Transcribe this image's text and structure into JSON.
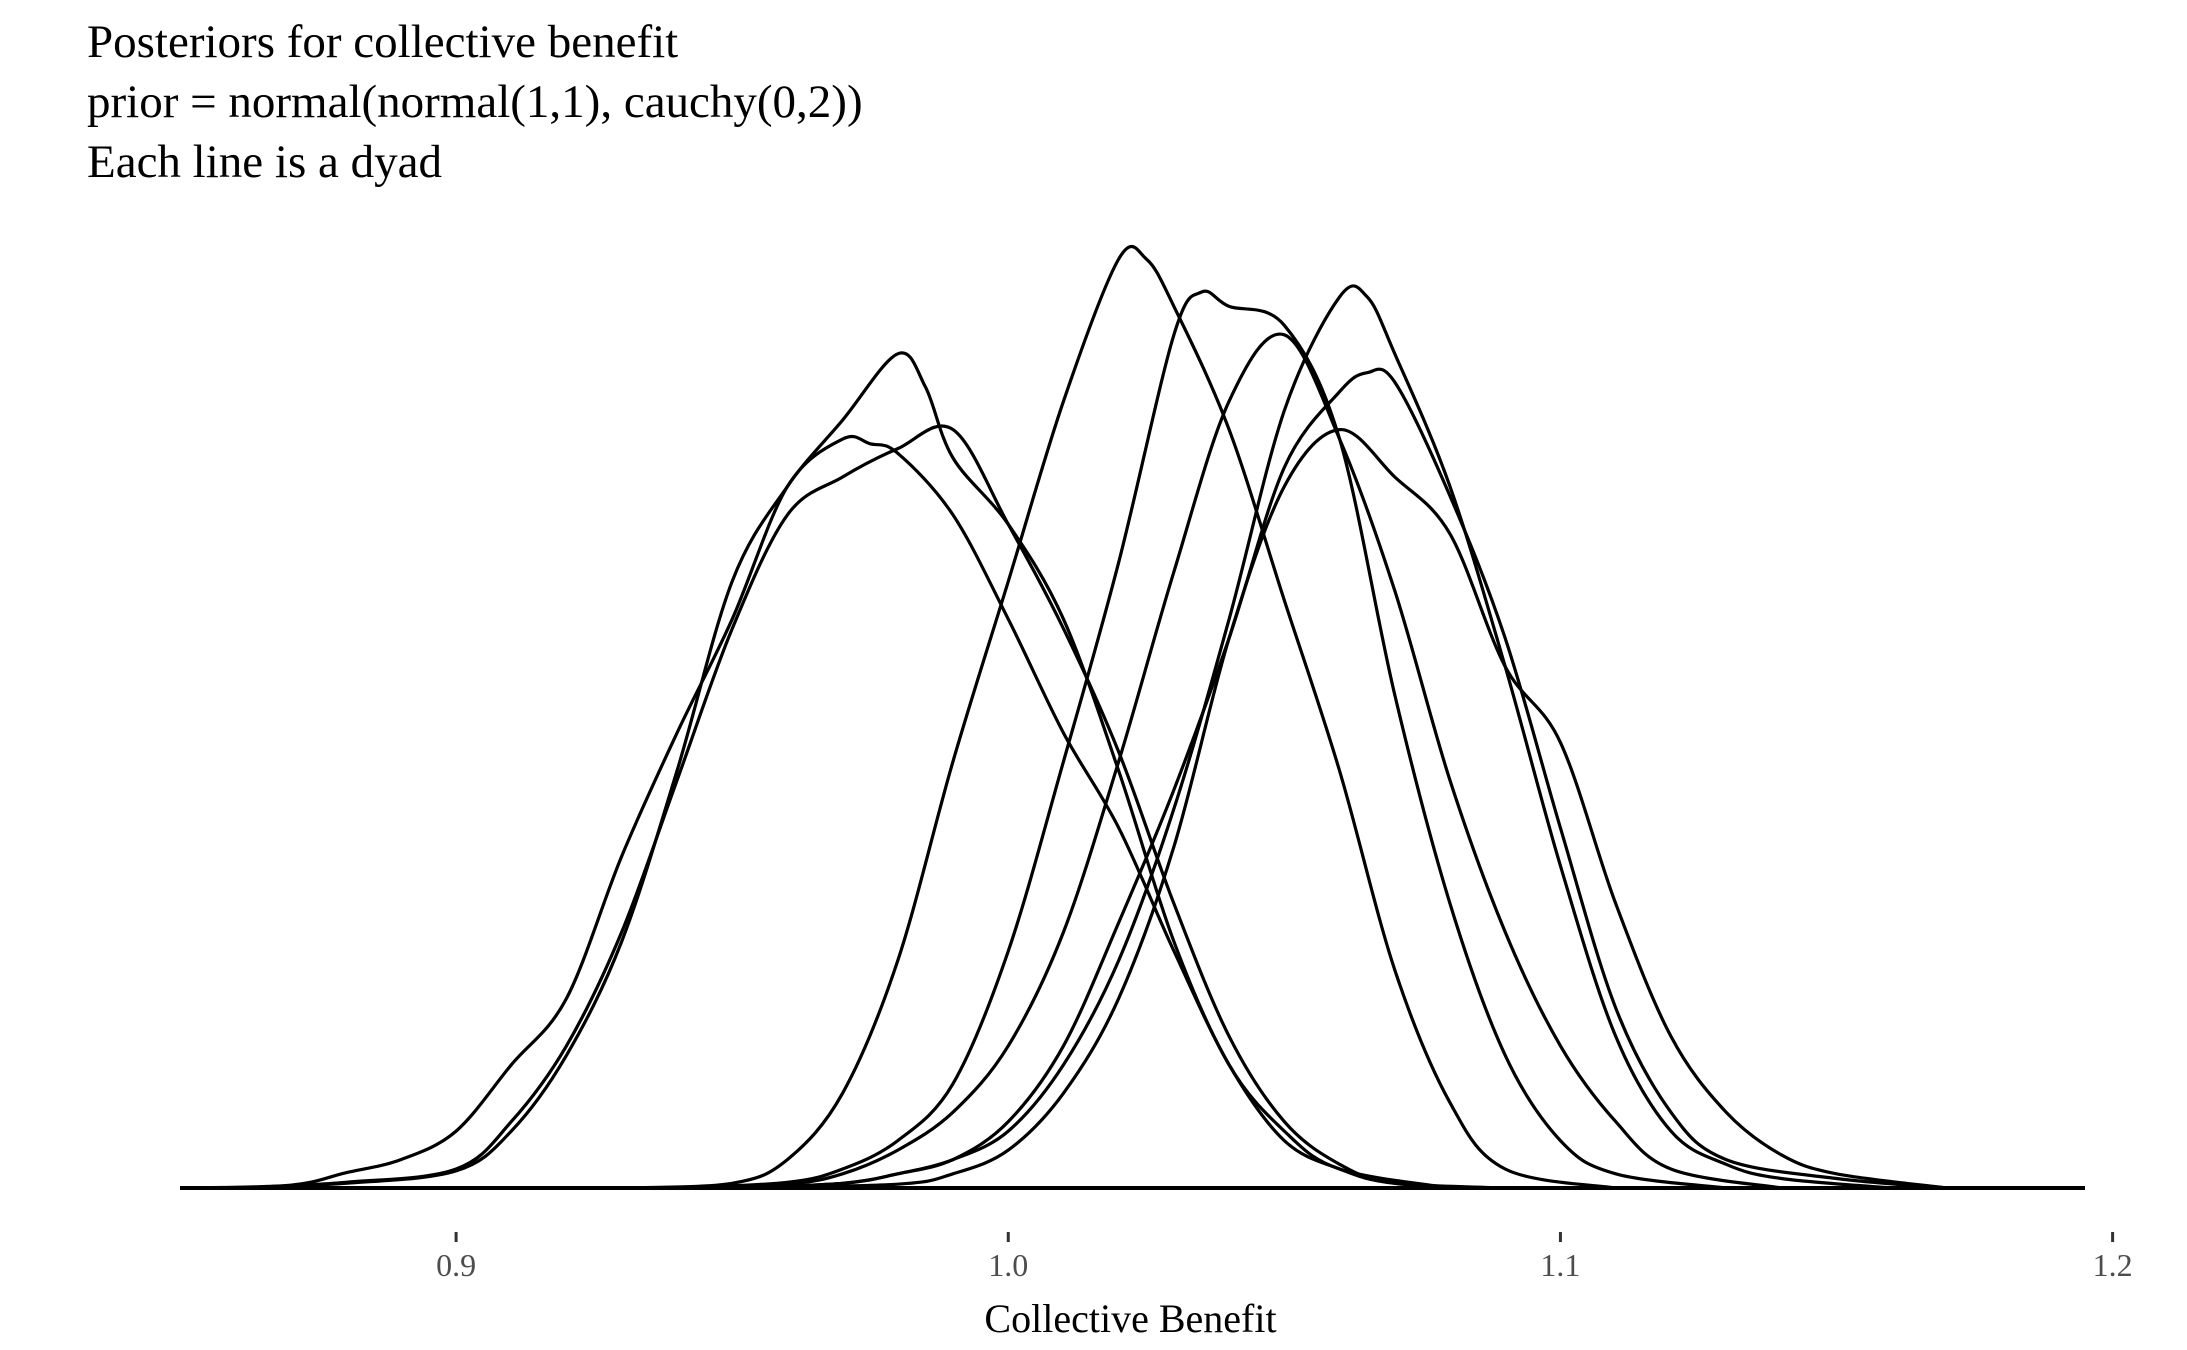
{
  "chart_data": {
    "type": "line",
    "title_lines": [
      "Posteriors for collective benefit",
      "prior = normal(normal(1,1), cauchy(0,2))",
      "Each line is a dyad"
    ],
    "xlabel": "Collective Benefit",
    "ylabel": "",
    "xlim": [
      0.85,
      1.195
    ],
    "ylim": [
      0,
      1.0
    ],
    "x_ticks": [
      0.9,
      1.0,
      1.1,
      1.2
    ],
    "x_tick_labels": [
      "0.9",
      "1.0",
      "1.1",
      "1.2"
    ],
    "grid": false,
    "legend": "none",
    "line_color": "#000000",
    "series": [
      {
        "points": [
          [
            0.85,
            0
          ],
          [
            0.87,
            0.003
          ],
          [
            0.88,
            0.016
          ],
          [
            0.89,
            0.03
          ],
          [
            0.9,
            0.06
          ],
          [
            0.91,
            0.13
          ],
          [
            0.92,
            0.2
          ],
          [
            0.93,
            0.35
          ],
          [
            0.94,
            0.48
          ],
          [
            0.95,
            0.6
          ],
          [
            0.96,
            0.74
          ],
          [
            0.97,
            0.79
          ],
          [
            0.975,
            0.785
          ],
          [
            0.98,
            0.775
          ],
          [
            0.99,
            0.71
          ],
          [
            1.0,
            0.6
          ],
          [
            1.01,
            0.48
          ],
          [
            1.02,
            0.38
          ],
          [
            1.03,
            0.25
          ],
          [
            1.04,
            0.13
          ],
          [
            1.05,
            0.05
          ],
          [
            1.06,
            0.02
          ],
          [
            1.07,
            0.005
          ],
          [
            1.09,
            0
          ]
        ]
      },
      {
        "points": [
          [
            0.86,
            0
          ],
          [
            0.88,
            0.006
          ],
          [
            0.9,
            0.02
          ],
          [
            0.91,
            0.07
          ],
          [
            0.92,
            0.15
          ],
          [
            0.93,
            0.27
          ],
          [
            0.94,
            0.43
          ],
          [
            0.95,
            0.59
          ],
          [
            0.96,
            0.71
          ],
          [
            0.97,
            0.75
          ],
          [
            0.98,
            0.78
          ],
          [
            0.99,
            0.8
          ],
          [
            1.0,
            0.7
          ],
          [
            1.01,
            0.59
          ],
          [
            1.02,
            0.46
          ],
          [
            1.03,
            0.3
          ],
          [
            1.04,
            0.16
          ],
          [
            1.05,
            0.07
          ],
          [
            1.06,
            0.025
          ],
          [
            1.07,
            0.005
          ],
          [
            1.09,
            0
          ]
        ]
      },
      {
        "points": [
          [
            0.86,
            0
          ],
          [
            0.88,
            0.005
          ],
          [
            0.9,
            0.018
          ],
          [
            0.91,
            0.06
          ],
          [
            0.92,
            0.14
          ],
          [
            0.93,
            0.26
          ],
          [
            0.94,
            0.44
          ],
          [
            0.95,
            0.64
          ],
          [
            0.96,
            0.74
          ],
          [
            0.97,
            0.81
          ],
          [
            0.98,
            0.88
          ],
          [
            0.985,
            0.845
          ],
          [
            0.99,
            0.77
          ],
          [
            1.0,
            0.7
          ],
          [
            1.01,
            0.6
          ],
          [
            1.02,
            0.44
          ],
          [
            1.03,
            0.26
          ],
          [
            1.04,
            0.13
          ],
          [
            1.05,
            0.06
          ],
          [
            1.06,
            0.02
          ],
          [
            1.08,
            0
          ]
        ]
      },
      {
        "points": [
          [
            0.93,
            0
          ],
          [
            0.95,
            0.005
          ],
          [
            0.96,
            0.03
          ],
          [
            0.97,
            0.1
          ],
          [
            0.98,
            0.24
          ],
          [
            0.99,
            0.45
          ],
          [
            1.0,
            0.64
          ],
          [
            1.01,
            0.83
          ],
          [
            1.02,
            0.98
          ],
          [
            1.025,
            0.98
          ],
          [
            1.03,
            0.93
          ],
          [
            1.04,
            0.8
          ],
          [
            1.05,
            0.62
          ],
          [
            1.06,
            0.44
          ],
          [
            1.07,
            0.23
          ],
          [
            1.08,
            0.09
          ],
          [
            1.09,
            0.02
          ],
          [
            1.11,
            0
          ]
        ]
      },
      {
        "points": [
          [
            0.94,
            0
          ],
          [
            0.96,
            0.006
          ],
          [
            0.97,
            0.02
          ],
          [
            0.98,
            0.05
          ],
          [
            0.99,
            0.11
          ],
          [
            1.0,
            0.25
          ],
          [
            1.01,
            0.45
          ],
          [
            1.02,
            0.66
          ],
          [
            1.03,
            0.9
          ],
          [
            1.035,
            0.945
          ],
          [
            1.04,
            0.93
          ],
          [
            1.05,
            0.91
          ],
          [
            1.06,
            0.79
          ],
          [
            1.07,
            0.52
          ],
          [
            1.08,
            0.3
          ],
          [
            1.09,
            0.14
          ],
          [
            1.1,
            0.05
          ],
          [
            1.11,
            0.015
          ],
          [
            1.13,
            0
          ]
        ]
      },
      {
        "points": [
          [
            0.94,
            0
          ],
          [
            0.96,
            0.004
          ],
          [
            0.97,
            0.015
          ],
          [
            0.98,
            0.04
          ],
          [
            0.99,
            0.08
          ],
          [
            1.0,
            0.15
          ],
          [
            1.01,
            0.27
          ],
          [
            1.02,
            0.45
          ],
          [
            1.03,
            0.65
          ],
          [
            1.04,
            0.83
          ],
          [
            1.05,
            0.9
          ],
          [
            1.06,
            0.79
          ],
          [
            1.07,
            0.63
          ],
          [
            1.08,
            0.43
          ],
          [
            1.09,
            0.27
          ],
          [
            1.1,
            0.15
          ],
          [
            1.11,
            0.07
          ],
          [
            1.12,
            0.02
          ],
          [
            1.14,
            0
          ]
        ]
      },
      {
        "points": [
          [
            0.95,
            0
          ],
          [
            0.97,
            0.005
          ],
          [
            0.98,
            0.015
          ],
          [
            0.99,
            0.03
          ],
          [
            1.0,
            0.06
          ],
          [
            1.01,
            0.13
          ],
          [
            1.02,
            0.24
          ],
          [
            1.03,
            0.4
          ],
          [
            1.04,
            0.6
          ],
          [
            1.05,
            0.82
          ],
          [
            1.06,
            0.94
          ],
          [
            1.065,
            0.94
          ],
          [
            1.07,
            0.88
          ],
          [
            1.08,
            0.74
          ],
          [
            1.09,
            0.55
          ],
          [
            1.1,
            0.34
          ],
          [
            1.11,
            0.16
          ],
          [
            1.12,
            0.06
          ],
          [
            1.13,
            0.025
          ],
          [
            1.14,
            0.01
          ],
          [
            1.16,
            0
          ]
        ]
      },
      {
        "points": [
          [
            0.95,
            0
          ],
          [
            0.97,
            0.005
          ],
          [
            0.98,
            0.015
          ],
          [
            0.99,
            0.03
          ],
          [
            1.0,
            0.07
          ],
          [
            1.01,
            0.15
          ],
          [
            1.02,
            0.28
          ],
          [
            1.03,
            0.42
          ],
          [
            1.04,
            0.58
          ],
          [
            1.05,
            0.76
          ],
          [
            1.06,
            0.84
          ],
          [
            1.065,
            0.86
          ],
          [
            1.07,
            0.85
          ],
          [
            1.08,
            0.73
          ],
          [
            1.09,
            0.58
          ],
          [
            1.1,
            0.38
          ],
          [
            1.11,
            0.19
          ],
          [
            1.12,
            0.08
          ],
          [
            1.13,
            0.03
          ],
          [
            1.15,
            0.01
          ],
          [
            1.17,
            0
          ]
        ]
      },
      {
        "points": [
          [
            0.95,
            0
          ],
          [
            0.98,
            0.004
          ],
          [
            0.99,
            0.015
          ],
          [
            1.0,
            0.04
          ],
          [
            1.01,
            0.1
          ],
          [
            1.02,
            0.2
          ],
          [
            1.03,
            0.36
          ],
          [
            1.04,
            0.58
          ],
          [
            1.05,
            0.74
          ],
          [
            1.06,
            0.8
          ],
          [
            1.07,
            0.75
          ],
          [
            1.08,
            0.69
          ],
          [
            1.09,
            0.55
          ],
          [
            1.1,
            0.47
          ],
          [
            1.11,
            0.3
          ],
          [
            1.12,
            0.16
          ],
          [
            1.13,
            0.08
          ],
          [
            1.14,
            0.035
          ],
          [
            1.15,
            0.015
          ],
          [
            1.17,
            0
          ]
        ]
      }
    ]
  }
}
